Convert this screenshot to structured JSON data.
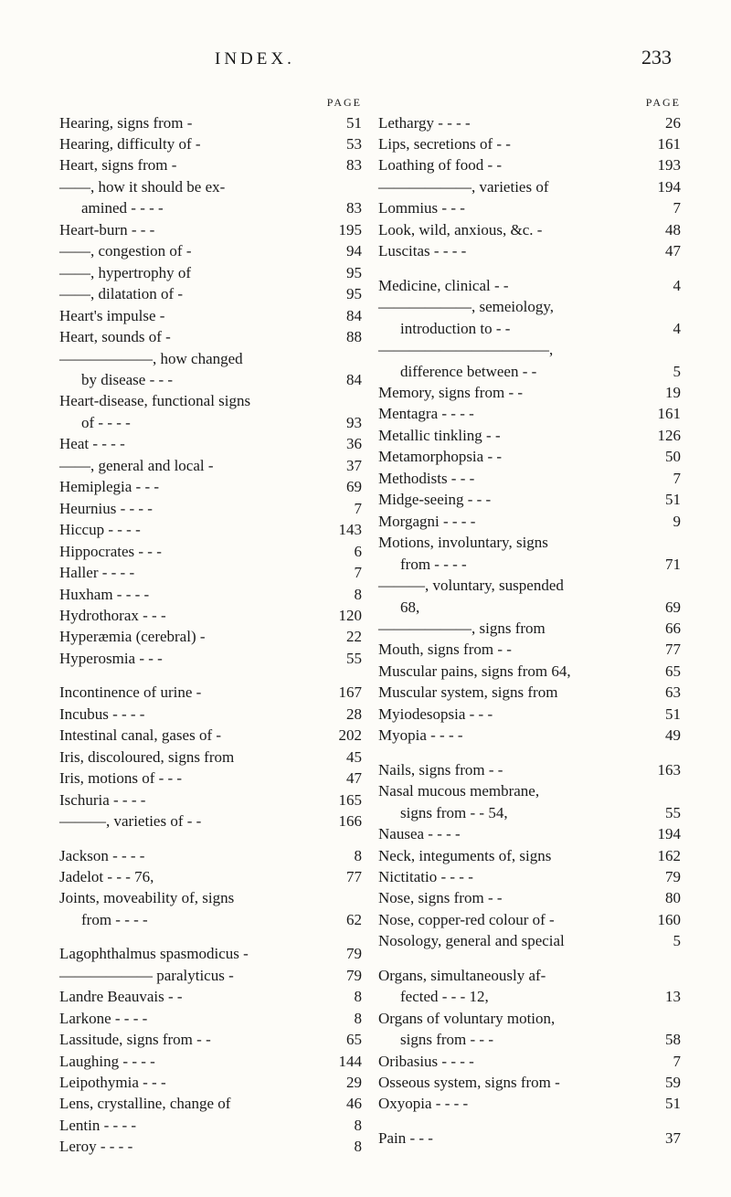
{
  "header": {
    "title": "INDEX.",
    "page_number": "233"
  },
  "column_page_label": "PAGE",
  "colors": {
    "background": "#fdfcf8",
    "text": "#1a1a1a"
  },
  "typography": {
    "body_font": "Times New Roman",
    "body_size_pt": 13,
    "header_size_pt": 16,
    "pagelabel_size_pt": 9
  },
  "left": [
    {
      "t": "e",
      "label": "Hearing, signs from   -",
      "pg": "51"
    },
    {
      "t": "e",
      "label": "Hearing, difficulty of -",
      "pg": "53"
    },
    {
      "t": "e",
      "label": "Heart, signs from       -",
      "pg": "83"
    },
    {
      "t": "e",
      "label": "——, how it should be ex-",
      "pg": ""
    },
    {
      "t": "c",
      "label": "amined -    -    -    -",
      "pg": "83"
    },
    {
      "t": "e",
      "label": "Heart-burn     -    -    -",
      "pg": "195"
    },
    {
      "t": "e",
      "label": "——, congestion of  -",
      "pg": "94"
    },
    {
      "t": "e",
      "label": "——, hypertrophy of",
      "pg": "95"
    },
    {
      "t": "e",
      "label": "——, dilatation of   -",
      "pg": "95"
    },
    {
      "t": "e",
      "label": "Heart's impulse       -",
      "pg": "84"
    },
    {
      "t": "e",
      "label": "Heart, sounds of      -",
      "pg": "88"
    },
    {
      "t": "e",
      "label": "——————, how changed",
      "pg": ""
    },
    {
      "t": "c",
      "label": "by disease    -    -    -",
      "pg": "84"
    },
    {
      "t": "e",
      "label": "Heart-disease, functional signs",
      "pg": ""
    },
    {
      "t": "c",
      "label": "of        -    -    -    -",
      "pg": "93"
    },
    {
      "t": "e",
      "label": "Heat        -    -    -    -",
      "pg": "36"
    },
    {
      "t": "e",
      "label": "——, general and local   -",
      "pg": "37"
    },
    {
      "t": "e",
      "label": "Hemiplegia       -    -    -",
      "pg": "69"
    },
    {
      "t": "e",
      "label": "Heurnius -    -    -    -",
      "pg": "7"
    },
    {
      "t": "e",
      "label": "Hiccup   -    -    -    -",
      "pg": "143"
    },
    {
      "t": "e",
      "label": "Hippocrates    -    -    -",
      "pg": "6"
    },
    {
      "t": "e",
      "label": "Haller    -    -    -    -",
      "pg": "7"
    },
    {
      "t": "e",
      "label": "Huxham  -    -    -    -",
      "pg": "8"
    },
    {
      "t": "e",
      "label": "Hydrothorax   -    -    -",
      "pg": "120"
    },
    {
      "t": "e",
      "label": "Hyperæmia (cerebral)    -",
      "pg": "22"
    },
    {
      "t": "e",
      "label": "Hyperosmia     -    -    -",
      "pg": "55"
    },
    {
      "t": "gap"
    },
    {
      "t": "e",
      "label": "Incontinence of urine -",
      "pg": "167"
    },
    {
      "t": "e",
      "label": "Incubus  -    -    -    -",
      "pg": "28"
    },
    {
      "t": "e",
      "label": "Intestinal canal, gases of  -",
      "pg": "202"
    },
    {
      "t": "e",
      "label": "Iris, discoloured, signs from",
      "pg": "45"
    },
    {
      "t": "e",
      "label": "Iris, motions of -    -    -",
      "pg": "47"
    },
    {
      "t": "e",
      "label": "Ischuria  -    -    -    -",
      "pg": "165"
    },
    {
      "t": "e",
      "label": "———, varieties of -    -",
      "pg": "166"
    },
    {
      "t": "gap"
    },
    {
      "t": "e",
      "label": "Jackson   -    -    -    -",
      "pg": "8"
    },
    {
      "t": "e",
      "label": "Jadelot    -    -    -   76,",
      "pg": "77"
    },
    {
      "t": "e",
      "label": "Joints, moveability of, signs",
      "pg": ""
    },
    {
      "t": "c",
      "label": "from    -    -    -    -",
      "pg": "62"
    },
    {
      "t": "gap"
    },
    {
      "t": "e",
      "label": "Lagophthalmus spasmodicus -",
      "pg": "79"
    },
    {
      "t": "e",
      "label": "—————— paralyticus -",
      "pg": "79"
    },
    {
      "t": "e",
      "label": "Landre Beauvais     -    -",
      "pg": "8"
    },
    {
      "t": "e",
      "label": "Larkone  -    -    -    -",
      "pg": "8"
    },
    {
      "t": "e",
      "label": "Lassitude, signs from -    -",
      "pg": "65"
    },
    {
      "t": "e",
      "label": "Laughing -    -    -    -",
      "pg": "144"
    },
    {
      "t": "e",
      "label": "Leipothymia    -    -    -",
      "pg": "29"
    },
    {
      "t": "e",
      "label": "Lens, crystalline, change of",
      "pg": "46"
    },
    {
      "t": "e",
      "label": "Lentin    -    -    -    -",
      "pg": "8"
    },
    {
      "t": "e",
      "label": "Leroy     -    -    -    -",
      "pg": "8"
    }
  ],
  "right": [
    {
      "t": "e",
      "label": "Lethargy -    -    -    -",
      "pg": "26"
    },
    {
      "t": "e",
      "label": "Lips, secretions of    -    -",
      "pg": "161"
    },
    {
      "t": "e",
      "label": "Loathing of food     -    -",
      "pg": "193"
    },
    {
      "t": "e",
      "label": "——————, varieties of",
      "pg": "194"
    },
    {
      "t": "e",
      "label": "Lommius      -    -    -",
      "pg": "7"
    },
    {
      "t": "e",
      "label": "Look, wild, anxious, &c.   -",
      "pg": "48"
    },
    {
      "t": "e",
      "label": "Luscitas   -    -    -    -",
      "pg": "47"
    },
    {
      "t": "gap"
    },
    {
      "t": "e",
      "label": "Medicine, clinical     -    -",
      "pg": "4"
    },
    {
      "t": "e",
      "label": "——————, semeiology,",
      "pg": ""
    },
    {
      "t": "c",
      "label": "introduction to    -    -",
      "pg": "4"
    },
    {
      "t": "e",
      "label": "———————————,",
      "pg": ""
    },
    {
      "t": "c",
      "label": "difference between -    -",
      "pg": "5"
    },
    {
      "t": "e",
      "label": "Memory, signs from  -    -",
      "pg": "19"
    },
    {
      "t": "e",
      "label": "Mentagra -    -    -    -",
      "pg": "161"
    },
    {
      "t": "e",
      "label": "Metallic tinkling     -    -",
      "pg": "126"
    },
    {
      "t": "e",
      "label": "Metamorphopsia     -    -",
      "pg": "50"
    },
    {
      "t": "e",
      "label": "Methodists     -    -    -",
      "pg": "7"
    },
    {
      "t": "e",
      "label": "Midge-seeing   -    -    -",
      "pg": "51"
    },
    {
      "t": "e",
      "label": "Morgagni -    -    -    -",
      "pg": "9"
    },
    {
      "t": "e",
      "label": "Motions, involuntary, signs",
      "pg": ""
    },
    {
      "t": "c",
      "label": "from    -    -    -    -",
      "pg": "71"
    },
    {
      "t": "e",
      "label": "———, voluntary, suspended",
      "pg": ""
    },
    {
      "t": "c",
      "label": "                      68,",
      "pg": "69"
    },
    {
      "t": "e",
      "label": "——————, signs from",
      "pg": "66"
    },
    {
      "t": "e",
      "label": "Mouth, signs from    -    -",
      "pg": "77"
    },
    {
      "t": "e",
      "label": "Muscular pains, signs from  64,",
      "pg": "65"
    },
    {
      "t": "e",
      "label": "Muscular system, signs from",
      "pg": "63"
    },
    {
      "t": "e",
      "label": "Myiodesopsia   -    -    -",
      "pg": "51"
    },
    {
      "t": "e",
      "label": "Myopia    -    -    -    -",
      "pg": "49"
    },
    {
      "t": "gap"
    },
    {
      "t": "e",
      "label": "Nails, signs from     -    -",
      "pg": "163"
    },
    {
      "t": "e",
      "label": "Nasal  mucous  membrane,",
      "pg": ""
    },
    {
      "t": "c",
      "label": "signs from   -    -   54,",
      "pg": "55"
    },
    {
      "t": "e",
      "label": "Nausea    -    -    -    -",
      "pg": "194"
    },
    {
      "t": "e",
      "label": "Neck, integuments of, signs",
      "pg": "162"
    },
    {
      "t": "e",
      "label": "Nictitatio -    -    -    -",
      "pg": "79"
    },
    {
      "t": "e",
      "label": "Nose, signs from     -    -",
      "pg": "80"
    },
    {
      "t": "e",
      "label": "Nose, copper-red colour of -",
      "pg": "160"
    },
    {
      "t": "e",
      "label": "Nosology, general and special",
      "pg": "5"
    },
    {
      "t": "gap"
    },
    {
      "t": "e",
      "label": "Organs, simultaneously af-",
      "pg": ""
    },
    {
      "t": "c",
      "label": "fected   -    -    -   12,",
      "pg": "13"
    },
    {
      "t": "e",
      "label": "Organs of voluntary motion,",
      "pg": ""
    },
    {
      "t": "c",
      "label": "signs from    -    -    -",
      "pg": "58"
    },
    {
      "t": "e",
      "label": "Oribasius -    -    -    -",
      "pg": "7"
    },
    {
      "t": "e",
      "label": "Osseous system, signs from -",
      "pg": "59"
    },
    {
      "t": "e",
      "label": "Oxyopia  -    -    -    -",
      "pg": "51"
    },
    {
      "t": "gap"
    },
    {
      "t": "e",
      "label": "Pain       -    -    -",
      "pg": "37"
    }
  ]
}
